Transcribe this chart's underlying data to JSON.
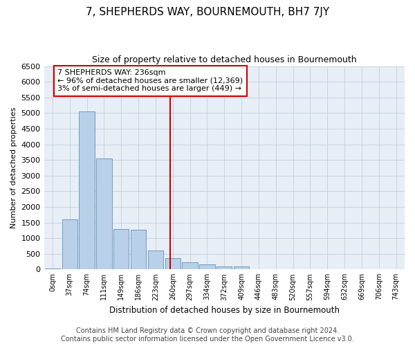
{
  "title": "7, SHEPHERDS WAY, BOURNEMOUTH, BH7 7JY",
  "subtitle": "Size of property relative to detached houses in Bournemouth",
  "xlabel": "Distribution of detached houses by size in Bournemouth",
  "ylabel": "Number of detached properties",
  "bin_labels": [
    "0sqm",
    "37sqm",
    "74sqm",
    "111sqm",
    "149sqm",
    "186sqm",
    "223sqm",
    "260sqm",
    "297sqm",
    "334sqm",
    "372sqm",
    "409sqm",
    "446sqm",
    "483sqm",
    "520sqm",
    "557sqm",
    "594sqm",
    "632sqm",
    "669sqm",
    "706sqm",
    "743sqm"
  ],
  "bar_values": [
    30,
    1600,
    5050,
    3550,
    1300,
    1270,
    600,
    350,
    230,
    160,
    100,
    100,
    0,
    0,
    0,
    0,
    0,
    0,
    0,
    0,
    0
  ],
  "bar_color": "#b8d0e8",
  "bar_edge_color": "#6090b8",
  "vline_color": "#cc0000",
  "annotation_text": "7 SHEPHERDS WAY: 236sqm\n← 96% of detached houses are smaller (12,369)\n3% of semi-detached houses are larger (449) →",
  "annotation_box_color": "#ffffff",
  "annotation_box_edge_color": "#cc0000",
  "ylim": [
    0,
    6500
  ],
  "yticks": [
    0,
    500,
    1000,
    1500,
    2000,
    2500,
    3000,
    3500,
    4000,
    4500,
    5000,
    5500,
    6000,
    6500
  ],
  "footer_line1": "Contains HM Land Registry data © Crown copyright and database right 2024.",
  "footer_line2": "Contains public sector information licensed under the Open Government Licence v3.0.",
  "bg_color": "#e8eef6",
  "title_fontsize": 11,
  "subtitle_fontsize": 9,
  "annotation_fontsize": 8,
  "footer_fontsize": 7,
  "ylabel_fontsize": 8,
  "xlabel_fontsize": 8.5,
  "ytick_fontsize": 8,
  "xtick_fontsize": 7
}
